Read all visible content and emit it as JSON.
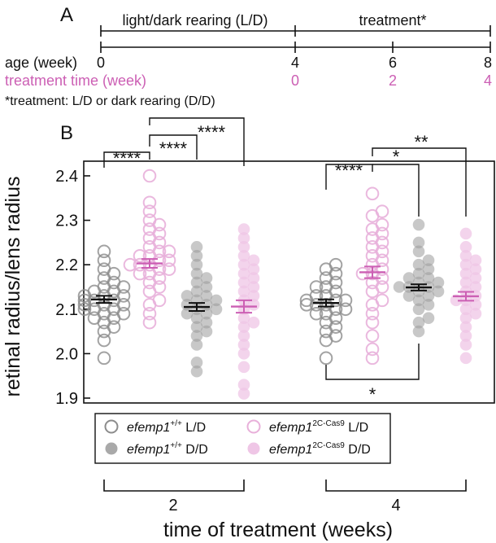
{
  "panel_a": {
    "label": "A",
    "segment_1": "light/dark rearing (L/D)",
    "segment_2": "treatment*",
    "age_label": "age (week)",
    "age_ticks": [
      "0",
      "4",
      "6",
      "8"
    ],
    "treatment_label": "treatment time (week)",
    "treatment_ticks": [
      "0",
      "2",
      "4"
    ],
    "footnote": "*treatment: L/D or dark rearing (D/D)"
  },
  "panel_b": {
    "label": "B",
    "significance": {
      "g1_a_b": "****",
      "g1_b_c": "****",
      "g1_b_d": "****",
      "g2_a_b": "****",
      "g2_b_c": "*",
      "g2_b_d": "**",
      "g2_a_c": "*"
    },
    "legend": [
      {
        "gene": "efemp1",
        "sup": "+/+",
        "cond": " L/D",
        "style": "open",
        "color": "#8c8c8c"
      },
      {
        "gene": "efemp1",
        "sup": "2C-Cas9",
        "cond": " L/D",
        "style": "open",
        "color": "#e8b0da"
      },
      {
        "gene": "efemp1",
        "sup": "+/+",
        "cond": " D/D",
        "style": "filled",
        "color": "#9a9a9a"
      },
      {
        "gene": "efemp1",
        "sup": "2C-Cas9",
        "cond": " D/D",
        "style": "filled",
        "color": "#efc6e6"
      }
    ]
  },
  "colors": {
    "black": "#111111",
    "pink": "#cc5fb4",
    "grey": "#8c8c8c"
  },
  "chart_data": {
    "type": "scatter",
    "xlabel": "time of treatment (weeks)",
    "ylabel": "retinal radius/lens radius",
    "ylim": [
      1.9,
      2.45
    ],
    "yticks": [
      1.9,
      2.0,
      2.1,
      2.2,
      2.3,
      2.4
    ],
    "ytick_labels": [
      "1.9",
      "2.0",
      "2.1",
      "2.2",
      "2.3",
      "2.4"
    ],
    "categories": [
      "2",
      "4"
    ],
    "series": [
      {
        "name": "efemp1+/+ L/D",
        "values": [
          2.122,
          2.114
        ],
        "sem": [
          0.008,
          0.008
        ],
        "points": [
          [
            1.99,
            2.03,
            2.05,
            2.06,
            2.07,
            2.08,
            2.08,
            2.09,
            2.09,
            2.1,
            2.1,
            2.1,
            2.11,
            2.11,
            2.11,
            2.12,
            2.12,
            2.12,
            2.13,
            2.13,
            2.13,
            2.14,
            2.14,
            2.15,
            2.15,
            2.16,
            2.17,
            2.18,
            2.19,
            2.21,
            2.23
          ],
          [
            1.99,
            2.03,
            2.04,
            2.05,
            2.06,
            2.07,
            2.08,
            2.09,
            2.09,
            2.1,
            2.1,
            2.11,
            2.11,
            2.11,
            2.12,
            2.12,
            2.12,
            2.13,
            2.13,
            2.14,
            2.15,
            2.15,
            2.16,
            2.17,
            2.18,
            2.19,
            2.2
          ]
        ]
      },
      {
        "name": "efemp1 2C-Cas9 L/D",
        "values": [
          2.203,
          2.183
        ],
        "sem": [
          0.01,
          0.013
        ],
        "points": [
          [
            2.07,
            2.09,
            2.11,
            2.12,
            2.14,
            2.15,
            2.16,
            2.17,
            2.18,
            2.18,
            2.19,
            2.19,
            2.2,
            2.2,
            2.2,
            2.21,
            2.21,
            2.22,
            2.22,
            2.23,
            2.23,
            2.24,
            2.25,
            2.26,
            2.27,
            2.28,
            2.29,
            2.3,
            2.32,
            2.34,
            2.4
          ],
          [
            1.99,
            2.01,
            2.04,
            2.07,
            2.09,
            2.11,
            2.12,
            2.14,
            2.15,
            2.16,
            2.17,
            2.18,
            2.18,
            2.19,
            2.2,
            2.21,
            2.22,
            2.23,
            2.24,
            2.25,
            2.26,
            2.27,
            2.28,
            2.29,
            2.31,
            2.32,
            2.36
          ]
        ]
      },
      {
        "name": "efemp1+/+ D/D",
        "values": [
          2.105,
          2.149
        ],
        "sem": [
          0.009,
          0.007
        ],
        "points": [
          [
            1.96,
            1.98,
            2.02,
            2.04,
            2.05,
            2.06,
            2.07,
            2.08,
            2.09,
            2.09,
            2.1,
            2.1,
            2.11,
            2.11,
            2.12,
            2.12,
            2.13,
            2.13,
            2.14,
            2.15,
            2.16,
            2.17,
            2.18,
            2.2,
            2.22,
            2.24
          ],
          [
            2.05,
            2.07,
            2.08,
            2.1,
            2.11,
            2.12,
            2.13,
            2.13,
            2.14,
            2.14,
            2.15,
            2.15,
            2.15,
            2.16,
            2.16,
            2.17,
            2.17,
            2.18,
            2.19,
            2.2,
            2.21,
            2.23,
            2.25,
            2.29
          ]
        ]
      },
      {
        "name": "efemp1 2C-Cas9 D/D",
        "values": [
          2.106,
          2.129
        ],
        "sem": [
          0.014,
          0.01
        ],
        "points": [
          [
            1.91,
            1.93,
            1.97,
            2.0,
            2.02,
            2.04,
            2.06,
            2.07,
            2.08,
            2.1,
            2.11,
            2.12,
            2.13,
            2.14,
            2.15,
            2.16,
            2.17,
            2.18,
            2.19,
            2.2,
            2.21,
            2.22,
            2.24,
            2.26,
            2.28
          ],
          [
            1.99,
            2.02,
            2.04,
            2.06,
            2.08,
            2.09,
            2.1,
            2.11,
            2.12,
            2.12,
            2.13,
            2.14,
            2.15,
            2.16,
            2.17,
            2.18,
            2.19,
            2.2,
            2.21,
            2.22,
            2.24,
            2.27
          ]
        ]
      }
    ]
  }
}
